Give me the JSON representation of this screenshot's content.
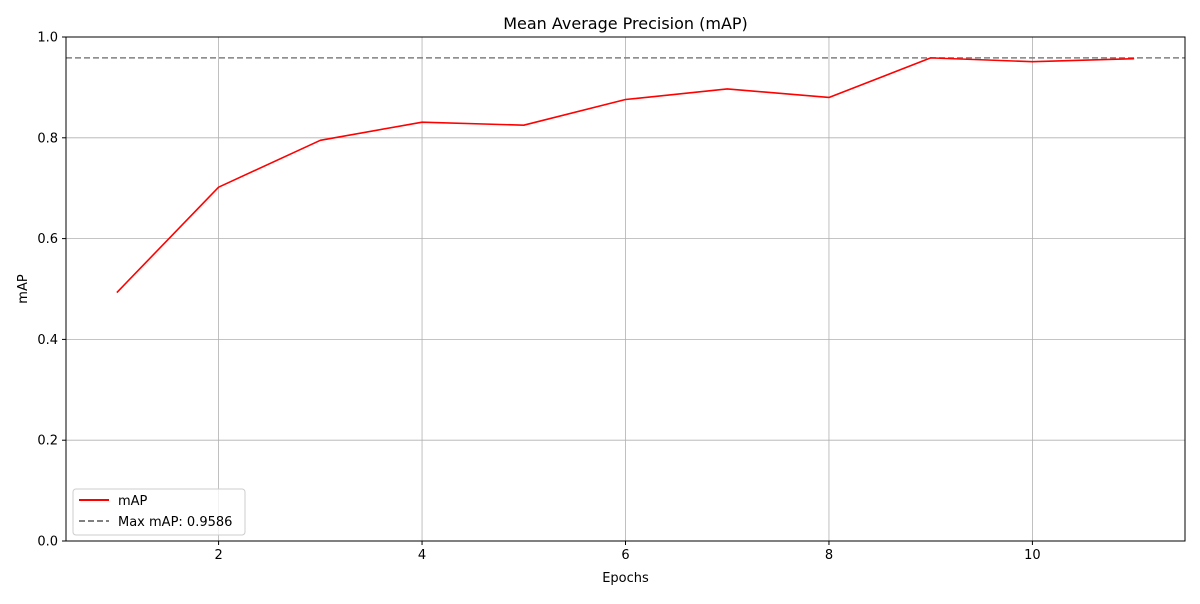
{
  "chart_data": {
    "type": "line",
    "title": "Mean Average Precision (mAP)",
    "xlabel": "Epochs",
    "ylabel": "mAP",
    "xlim": [
      0.5,
      11.5
    ],
    "ylim": [
      0.0,
      1.0
    ],
    "xticks": [
      2,
      4,
      6,
      8,
      10
    ],
    "xtick_labels": [
      "2",
      "4",
      "6",
      "8",
      "10"
    ],
    "yticks": [
      0.0,
      0.2,
      0.4,
      0.6,
      0.8,
      1.0
    ],
    "ytick_labels": [
      "0.0",
      "0.2",
      "0.4",
      "0.6",
      "0.8",
      "1.0"
    ],
    "grid": true,
    "legend_position": "lower-left",
    "series": [
      {
        "name": "mAP",
        "color": "#ff0000",
        "style": "solid",
        "x": [
          1,
          2,
          3,
          4,
          5,
          6,
          7,
          8,
          9,
          10,
          11
        ],
        "y": [
          0.493,
          0.702,
          0.795,
          0.831,
          0.825,
          0.876,
          0.897,
          0.88,
          0.9586,
          0.951,
          0.957
        ]
      }
    ],
    "reference_lines": [
      {
        "name": "Max mAP: 0.9586",
        "y": 0.9586,
        "color": "#808080",
        "style": "dashed"
      }
    ]
  }
}
